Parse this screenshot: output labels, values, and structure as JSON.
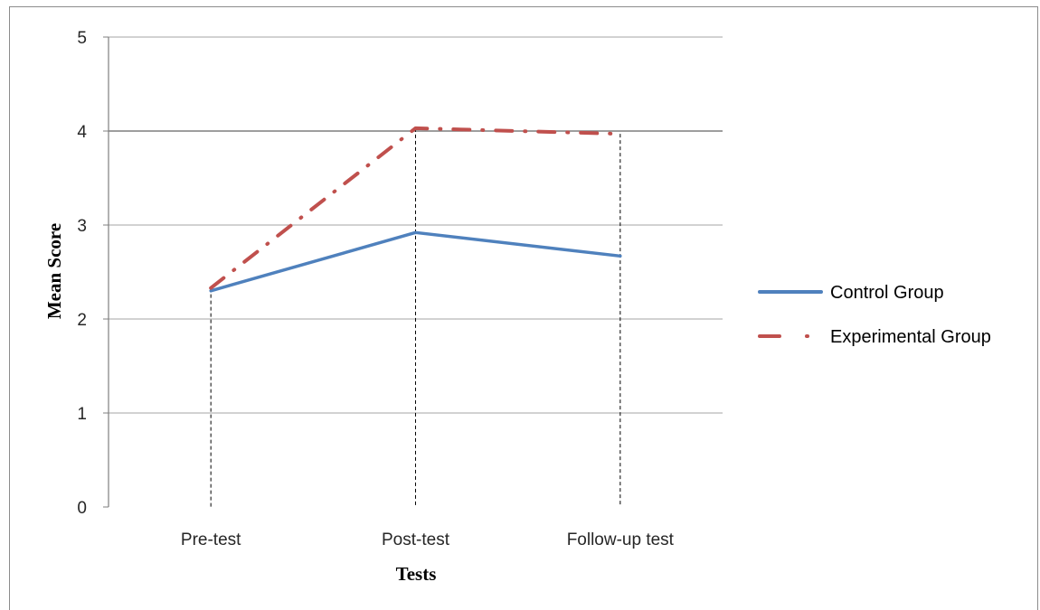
{
  "chart_data": {
    "type": "line",
    "categories": [
      "Pre-test",
      "Post-test",
      "Follow-up test"
    ],
    "series": [
      {
        "name": "Control Group",
        "values": [
          2.3,
          2.92,
          2.67
        ],
        "color": "#4F81BD",
        "style": "solid"
      },
      {
        "name": "Experimental Group",
        "values": [
          2.33,
          4.03,
          3.97
        ],
        "color": "#C0504D",
        "style": "dash-dot"
      }
    ],
    "title": "",
    "xlabel": "Tests",
    "ylabel": "Mean Score",
    "ylim": [
      0,
      5
    ],
    "yticks": [
      0,
      1,
      2,
      3,
      4,
      5
    ],
    "grid": true,
    "drop_lines": true,
    "legend_position": "right"
  }
}
